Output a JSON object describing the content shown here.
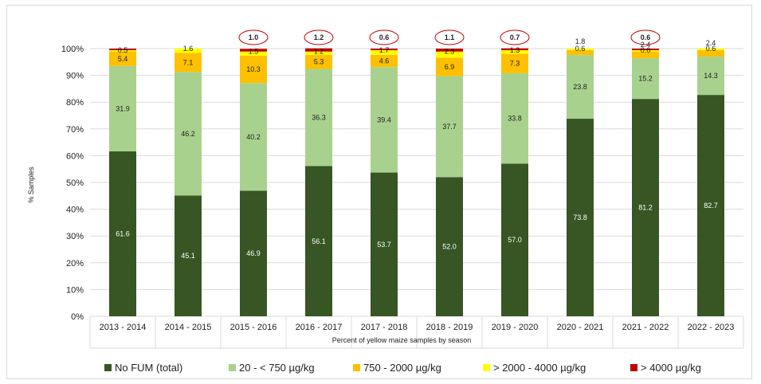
{
  "chart_data": {
    "type": "bar",
    "stacked": true,
    "title": "",
    "xlabel": "Percent of yellow maize samples by season",
    "ylabel": "% Samples",
    "ylim": [
      0,
      100
    ],
    "y_ticks": [
      "0%",
      "10%",
      "20%",
      "30%",
      "40%",
      "50%",
      "60%",
      "70%",
      "80%",
      "90%",
      "100%"
    ],
    "grid": true,
    "legend_position": "bottom",
    "categories": [
      "2013 - 2014",
      "2014 - 2015",
      "2015 - 2016",
      "2016 - 2017",
      "2017 - 2018",
      "2018 - 2019",
      "2019 - 2020",
      "2020 - 2021",
      "2021 - 2022",
      "2022 - 2023"
    ],
    "series": [
      {
        "name": "No FUM (total)",
        "color": "#375623",
        "values": [
          61.6,
          45.1,
          46.9,
          56.1,
          53.7,
          52.0,
          57.0,
          73.8,
          81.2,
          82.7
        ],
        "labels": [
          "61.6",
          "45.1",
          "46.9",
          "56.1",
          "53.7",
          "52.0",
          "57.0",
          "73.8",
          "81.2",
          "82.7"
        ]
      },
      {
        "name": "20 - < 750 µg/kg",
        "color": "#a9d18e",
        "values": [
          31.9,
          46.2,
          40.2,
          36.3,
          39.4,
          37.7,
          33.8,
          23.8,
          15.2,
          14.3
        ],
        "labels": [
          "31.9",
          "46.2",
          "40.2",
          "36.3",
          "39.4",
          "37.7",
          "33.8",
          "23.8",
          "15.2",
          "14.3"
        ]
      },
      {
        "name": "750 - 2000 µg/kg",
        "color": "#ffc000",
        "values": [
          5.4,
          7.1,
          10.3,
          5.3,
          4.6,
          6.9,
          7.3,
          1.8,
          2.4,
          2.4
        ],
        "labels": [
          "5.4",
          "7.1",
          "10.3",
          "5.3",
          "4.6",
          "6.9",
          "7.3",
          "1.8",
          "2.4",
          "2.4"
        ]
      },
      {
        "name": "> 2000 - 4000 µg/kg",
        "color": "#ffff00",
        "values": [
          0.5,
          1.6,
          1.5,
          1.2,
          1.7,
          2.3,
          1.3,
          0.6,
          0.6,
          0.6
        ],
        "labels": [
          "0.5",
          "1.6",
          "1.5",
          "1.2",
          "1.7",
          "2.3",
          "1.3",
          "0.6",
          "0.6",
          "0.6"
        ]
      },
      {
        "name": "> 4000 µg/kg",
        "color": "#c00000",
        "values": [
          0.6,
          0,
          1.0,
          1.2,
          0.6,
          1.1,
          0.7,
          0,
          0.6,
          0
        ],
        "labels": [
          "",
          "",
          "1.0",
          "1.2",
          "0.6",
          "1.1",
          "0.7",
          "",
          "0.6",
          ""
        ]
      }
    ]
  }
}
